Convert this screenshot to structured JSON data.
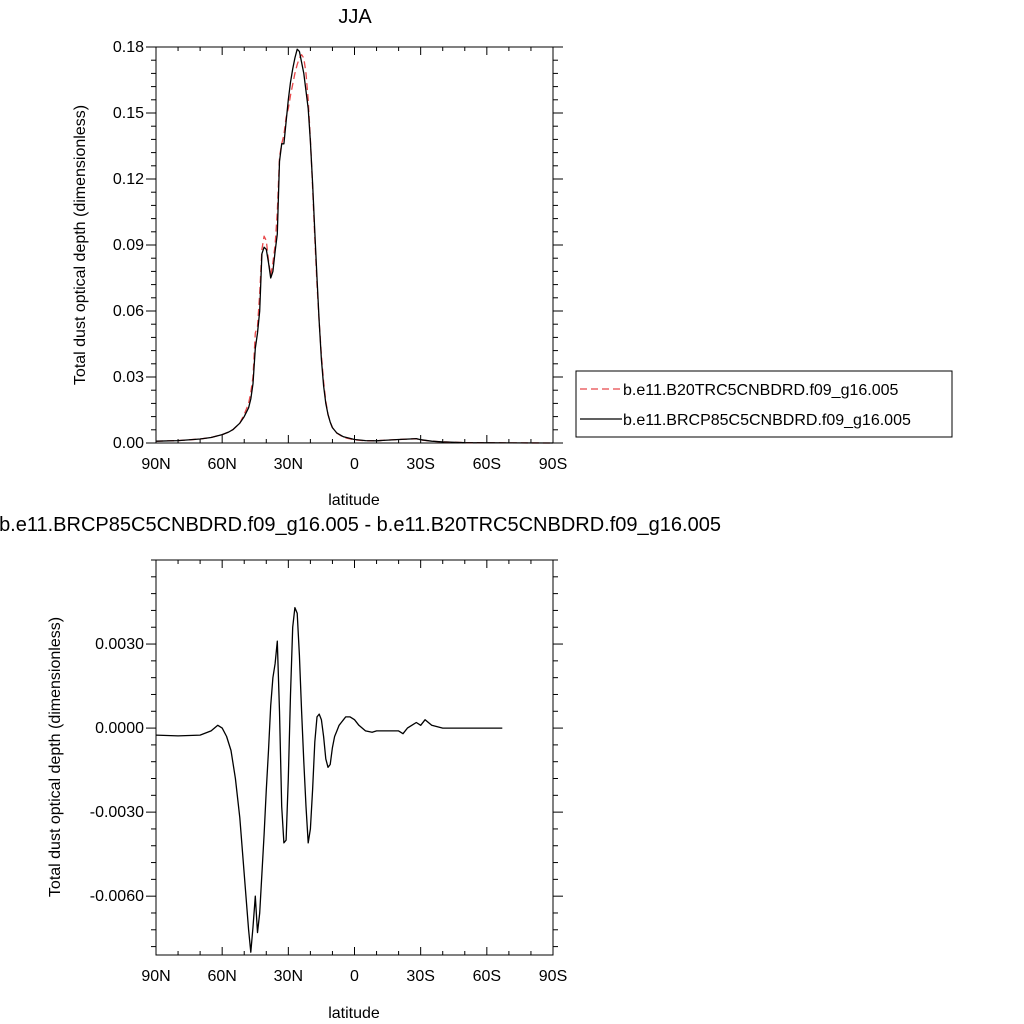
{
  "chart_data": [
    {
      "type": "line",
      "title": "JJA",
      "xlabel": "latitude",
      "ylabel": "Total dust optical depth (dimensionless)",
      "xlim": [
        90,
        -90
      ],
      "ylim": [
        0,
        0.18
      ],
      "x_ticks": [
        90,
        60,
        30,
        0,
        -30,
        -60,
        -90
      ],
      "x_tick_labels": [
        "90N",
        "60N",
        "30N",
        "0",
        "30S",
        "60S",
        "90S"
      ],
      "y_ticks": [
        0,
        0.03,
        0.06,
        0.09,
        0.12,
        0.15,
        0.18
      ],
      "y_tick_labels": [
        "0.00",
        "0.03",
        "0.06",
        "0.09",
        "0.12",
        "0.15",
        "0.18"
      ],
      "legend_position": "right",
      "series": [
        {
          "name": "b.e11.B20TRC5CNBDRD.f09_g16.005",
          "color": "#e8484a",
          "style": "dashed",
          "x": [
            90,
            80,
            70,
            65,
            60,
            57,
            55,
            52,
            50,
            48,
            47,
            46,
            45,
            44,
            43,
            42,
            41,
            40,
            39,
            38,
            37,
            36,
            35,
            34,
            33,
            32,
            31,
            30,
            29,
            28,
            27,
            26,
            25,
            24,
            23,
            22,
            21,
            20,
            19,
            18,
            17,
            16,
            15,
            14,
            13,
            12,
            11,
            10,
            8,
            5,
            0,
            -5,
            -10,
            -15,
            -20,
            -25,
            -28,
            -30,
            -35,
            -40,
            -50,
            -60,
            -90
          ],
          "y": [
            0.0008,
            0.0011,
            0.0018,
            0.0025,
            0.0038,
            0.005,
            0.0062,
            0.009,
            0.013,
            0.018,
            0.023,
            0.03,
            0.05,
            0.053,
            0.068,
            0.088,
            0.094,
            0.092,
            0.083,
            0.076,
            0.082,
            0.09,
            0.105,
            0.13,
            0.136,
            0.14,
            0.148,
            0.152,
            0.158,
            0.163,
            0.168,
            0.172,
            0.175,
            0.1765,
            0.175,
            0.168,
            0.156,
            0.138,
            0.116,
            0.093,
            0.072,
            0.055,
            0.04,
            0.028,
            0.019,
            0.013,
            0.0095,
            0.007,
            0.0045,
            0.0025,
            0.0014,
            0.001,
            0.001,
            0.0013,
            0.0016,
            0.0018,
            0.0019,
            0.0014,
            0.0008,
            0.0005,
            0.0002,
            0.0001,
            0.0
          ]
        },
        {
          "name": "b.e11.BRCP85C5CNBDRD.f09_g16.005",
          "color": "#000000",
          "style": "solid",
          "x": [
            90,
            80,
            70,
            65,
            60,
            57,
            55,
            52,
            50,
            48,
            47,
            46,
            45,
            44,
            43,
            42,
            41,
            40,
            39,
            38,
            37,
            36,
            35,
            34,
            33,
            32,
            31,
            30,
            29,
            28,
            27,
            26,
            25,
            24,
            23,
            22,
            21,
            20,
            19,
            18,
            17,
            16,
            15,
            14,
            13,
            12,
            11,
            10,
            8,
            5,
            0,
            -5,
            -10,
            -15,
            -20,
            -25,
            -28,
            -30,
            -35,
            -40,
            -50,
            -60,
            -90
          ],
          "y": [
            0.0008,
            0.0011,
            0.0018,
            0.0025,
            0.0038,
            0.005,
            0.0062,
            0.009,
            0.012,
            0.016,
            0.02,
            0.027,
            0.043,
            0.05,
            0.06,
            0.086,
            0.089,
            0.088,
            0.082,
            0.075,
            0.078,
            0.087,
            0.095,
            0.128,
            0.136,
            0.136,
            0.146,
            0.156,
            0.164,
            0.17,
            0.175,
            0.179,
            0.178,
            0.173,
            0.168,
            0.16,
            0.152,
            0.137,
            0.118,
            0.096,
            0.075,
            0.055,
            0.038,
            0.026,
            0.018,
            0.013,
            0.0095,
            0.007,
            0.0045,
            0.0028,
            0.0016,
            0.0011,
            0.001,
            0.0013,
            0.0016,
            0.0018,
            0.002,
            0.0015,
            0.0008,
            0.0005,
            0.0002,
            0.0001,
            0.0
          ]
        }
      ]
    },
    {
      "type": "line",
      "title": "b.e11.BRCP85C5CNBDRD.f09_g16.005 - b.e11.B20TRC5CNBDRD.f09_g16.005",
      "xlabel": "latitude",
      "ylabel": "Total dust optical depth (dimensionless)",
      "xlim": [
        90,
        -90
      ],
      "ylim": [
        -0.0081,
        0.006
      ],
      "x_ticks": [
        90,
        60,
        30,
        0,
        -30,
        -60,
        -90
      ],
      "x_tick_labels": [
        "90N",
        "60N",
        "30N",
        "0",
        "30S",
        "60S",
        "90S"
      ],
      "y_ticks": [
        -0.006,
        -0.003,
        0.0,
        0.003
      ],
      "y_tick_labels": [
        "-0.0060",
        "-0.0030",
        "0.0000",
        "0.0030"
      ],
      "series": [
        {
          "color": "#000000",
          "style": "solid",
          "x": [
            90,
            80,
            70,
            65,
            62,
            60,
            58,
            56,
            54,
            52,
            50,
            48,
            47,
            46,
            45,
            44,
            43,
            42,
            41,
            40,
            39,
            38,
            37,
            36,
            35,
            34,
            33,
            32,
            31,
            30,
            29,
            28,
            27,
            26,
            25,
            24,
            23,
            22,
            21,
            20,
            19,
            18,
            17,
            16,
            15,
            14,
            13,
            12,
            11,
            10,
            9,
            8,
            7,
            6,
            5,
            4,
            2,
            0,
            -2,
            -5,
            -8,
            -10,
            -15,
            -20,
            -22,
            -24,
            -26,
            -28,
            -30,
            -32,
            -35,
            -40,
            -50,
            -60,
            -67
          ],
          "y": [
            -0.00025,
            -0.00028,
            -0.00025,
            -0.0001,
            0.0001,
            0.0,
            -0.0003,
            -0.0008,
            -0.0018,
            -0.0032,
            -0.0052,
            -0.0072,
            -0.008,
            -0.0071,
            -0.006,
            -0.0073,
            -0.0066,
            -0.0052,
            -0.0038,
            -0.0022,
            -0.0008,
            0.0008,
            0.0018,
            0.0023,
            0.0031,
            0.0006,
            -0.0028,
            -0.0041,
            -0.004,
            -0.0018,
            0.0012,
            0.0036,
            0.0043,
            0.0041,
            0.0026,
            0.0006,
            -0.0012,
            -0.0028,
            -0.0041,
            -0.0036,
            -0.0022,
            -0.0005,
            0.0004,
            0.0005,
            0.0003,
            -0.0003,
            -0.0011,
            -0.0014,
            -0.0013,
            -0.0007,
            -0.0003,
            -0.0001,
            0.0001,
            0.0002,
            0.0003,
            0.0004,
            0.0004,
            0.0003,
            0.0001,
            -0.0001,
            -0.00015,
            -0.0001,
            -0.0001,
            -0.0001,
            -0.0002,
            0.0,
            0.0001,
            0.0002,
            0.0001,
            0.0003,
            0.0001,
            0.0,
            0.0,
            0.0,
            0.0
          ]
        }
      ]
    }
  ]
}
